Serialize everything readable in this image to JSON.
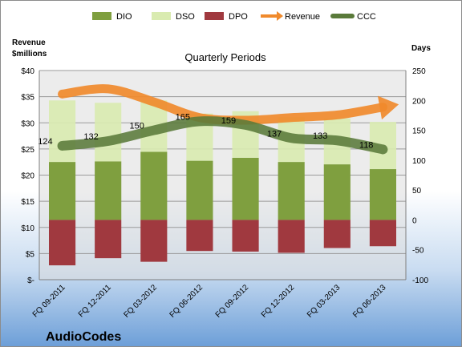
{
  "chart_data": {
    "type": "bar",
    "title": "Quarterly Periods",
    "brand": "AudioCodes",
    "left_axis_label_lines": [
      "Revenue",
      "$millions"
    ],
    "right_axis_label": "Days",
    "categories": [
      "FQ 09-2011",
      "FQ 12-2011",
      "FQ 03-2012",
      "FQ 06-2012",
      "FQ 09-2012",
      "FQ 12-2012",
      "FQ 03-2013",
      "FQ 06-2013"
    ],
    "left_axis": {
      "min": 0,
      "max": 40,
      "step": 5,
      "tick_labels": [
        "$-",
        "$5",
        "$10",
        "$15",
        "$20",
        "$25",
        "$30",
        "$35",
        "$40"
      ]
    },
    "right_axis": {
      "min": -100,
      "max": 250,
      "step": 50,
      "tick_labels": [
        "-100",
        "-50",
        "0",
        "50",
        "100",
        "150",
        "200",
        "250"
      ]
    },
    "legend_position": "top",
    "gridlines": true,
    "legend": [
      {
        "name": "DIO",
        "color": "#7f9f3f",
        "marker": "box"
      },
      {
        "name": "DSO",
        "color": "#d9ebb0",
        "marker": "box"
      },
      {
        "name": "DPO",
        "color": "#a0393f",
        "marker": "box"
      },
      {
        "name": "Revenue",
        "color": "#f08a2c",
        "marker": "arrow"
      },
      {
        "name": "CCC",
        "color": "#5a7a3a",
        "marker": "line"
      }
    ],
    "series": [
      {
        "name": "DIO",
        "axis": "days",
        "values": [
          97,
          98,
          114,
          99,
          104,
          97,
          93,
          85
        ]
      },
      {
        "name": "DSO",
        "axis": "days",
        "values": [
          103,
          98,
          86,
          79,
          78,
          75,
          77,
          79
        ]
      },
      {
        "name": "DPO",
        "axis": "days",
        "values": [
          -76,
          -64,
          -70,
          -52,
          -53,
          -55,
          -47,
          -44
        ]
      },
      {
        "name": "Revenue",
        "axis": "revenue",
        "values": [
          35.5,
          36.5,
          34.0,
          31.0,
          30.5,
          31.0,
          31.5,
          33.0
        ]
      },
      {
        "name": "CCC",
        "axis": "days",
        "values": [
          124,
          132,
          150,
          165,
          159,
          137,
          133,
          118
        ]
      }
    ],
    "ccc_labels": [
      "124",
      "132",
      "150",
      "165",
      "159",
      "137",
      "133",
      "118"
    ]
  }
}
